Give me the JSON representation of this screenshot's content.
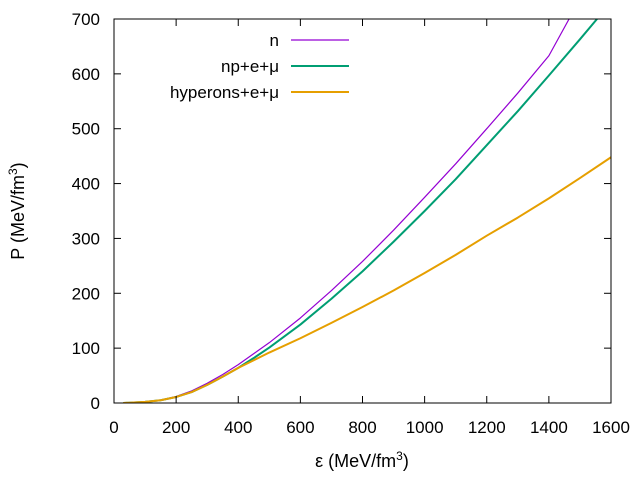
{
  "chart_data": {
    "type": "line",
    "title": "",
    "xlabel": {
      "base": "ε (MeV/fm",
      "sup": "3",
      "tail": ")"
    },
    "ylabel": {
      "base": "P (MeV/fm",
      "sup": "3",
      "tail": ")"
    },
    "xlim": [
      0,
      1600
    ],
    "ylim": [
      0,
      700
    ],
    "xticks": [
      0,
      200,
      400,
      600,
      800,
      1000,
      1200,
      1400,
      1600
    ],
    "yticks": [
      0,
      100,
      200,
      300,
      400,
      500,
      600,
      700
    ],
    "grid": false,
    "legend_position": "top-right",
    "series": [
      {
        "name": "n",
        "color": "#9400d3",
        "x": [
          30,
          100,
          150,
          200,
          250,
          300,
          350,
          400,
          450,
          500,
          600,
          700,
          800,
          900,
          1000,
          1100,
          1200,
          1300,
          1400,
          1465
        ],
        "y": [
          0,
          2,
          5,
          12,
          22,
          36,
          52,
          70,
          90,
          110,
          155,
          205,
          258,
          315,
          375,
          436,
          500,
          565,
          633,
          700
        ]
      },
      {
        "name": "np+e+μ",
        "color": "#009e73",
        "x": [
          30,
          100,
          150,
          200,
          250,
          300,
          350,
          400,
          450,
          500,
          600,
          700,
          800,
          900,
          1000,
          1100,
          1200,
          1300,
          1400,
          1500,
          1555
        ],
        "y": [
          0,
          2,
          5,
          11,
          20,
          33,
          48,
          64,
          82,
          101,
          143,
          190,
          240,
          294,
          350,
          408,
          470,
          532,
          597,
          663,
          700
        ]
      },
      {
        "name": "hyperons+e+μ",
        "color": "#e69f00",
        "x": [
          30,
          100,
          150,
          200,
          250,
          300,
          350,
          400,
          450,
          500,
          600,
          700,
          800,
          900,
          1000,
          1100,
          1200,
          1300,
          1400,
          1500,
          1600
        ],
        "y": [
          0,
          2,
          5,
          11,
          20,
          33,
          48,
          64,
          78,
          92,
          118,
          146,
          175,
          205,
          237,
          270,
          305,
          338,
          373,
          410,
          448
        ]
      }
    ]
  }
}
